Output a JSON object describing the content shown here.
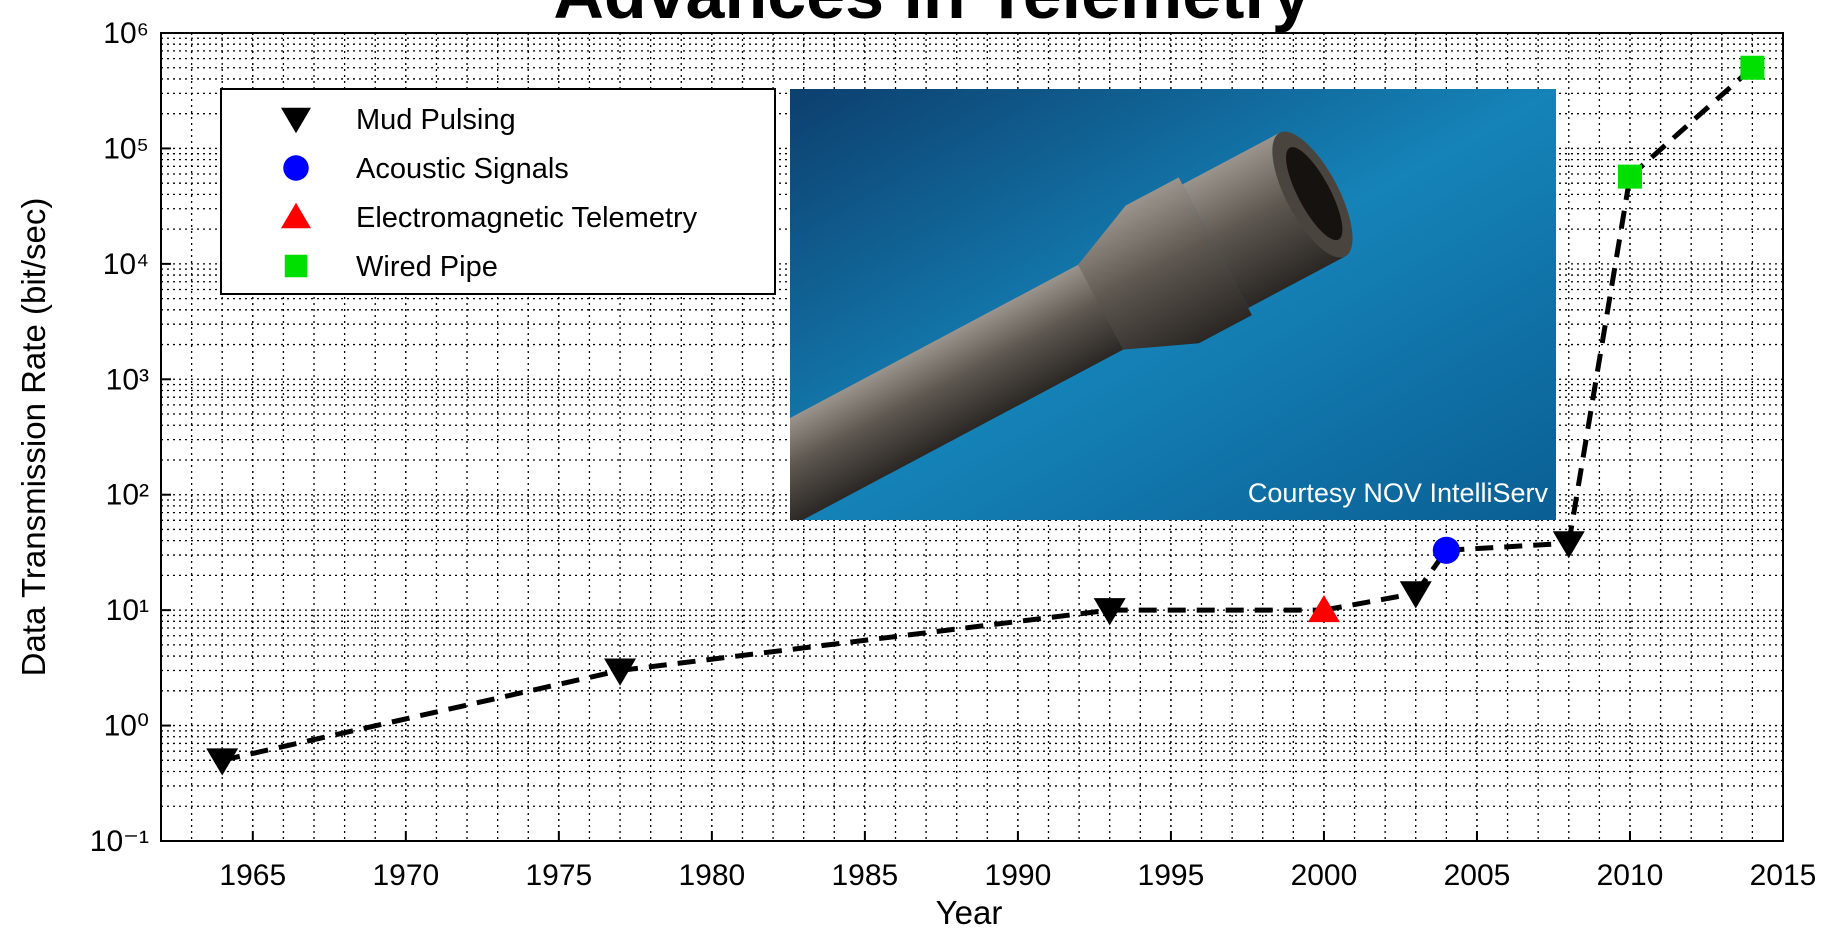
{
  "chart_data": {
    "type": "scatter",
    "title": "Advances in Telemetry",
    "x_label": "Year",
    "y_label": "Data Transmission Rate (bit/sec)",
    "annotation": "Courtesy NOV IntelliServ",
    "log_y": true,
    "grid": true,
    "minor_grid": true,
    "connect_line": true,
    "legend": "upper left",
    "xlim": [
      1962,
      2015
    ],
    "xticks": [
      1965,
      1970,
      1975,
      1980,
      1985,
      1990,
      1995,
      2000,
      2005,
      2010,
      2015
    ],
    "ylim": [
      0.1,
      1000000
    ],
    "yticks": [
      {
        "value": 0.1,
        "label": "10⁻¹"
      },
      {
        "value": 1,
        "label": "10⁰"
      },
      {
        "value": 10,
        "label": "10¹"
      },
      {
        "value": 100,
        "label": "10²"
      },
      {
        "value": 1000,
        "label": "10³"
      },
      {
        "value": 10000,
        "label": "10⁴"
      },
      {
        "value": 100000,
        "label": "10⁵"
      },
      {
        "value": 1000000,
        "label": "10⁶"
      }
    ],
    "series": [
      {
        "name": "Mud Pulsing",
        "color": "#000000",
        "marker": "triangle-down",
        "x": [
          1964,
          1977,
          1993,
          2003,
          2008
        ],
        "values": [
          0.5,
          3,
          10,
          14,
          38
        ]
      },
      {
        "name": "Acoustic Signals",
        "color": "#0000ff",
        "marker": "circle",
        "x": [
          2004
        ],
        "values": [
          33
        ]
      },
      {
        "name": "Electromagnetic Telemetry",
        "color": "#ff0000",
        "marker": "triangle-up",
        "x": [
          2000
        ],
        "values": [
          10
        ]
      },
      {
        "name": "Wired Pipe",
        "color": "#00e000",
        "marker": "square",
        "x": [
          2010,
          2014
        ],
        "values": [
          57000,
          500000
        ]
      }
    ]
  }
}
